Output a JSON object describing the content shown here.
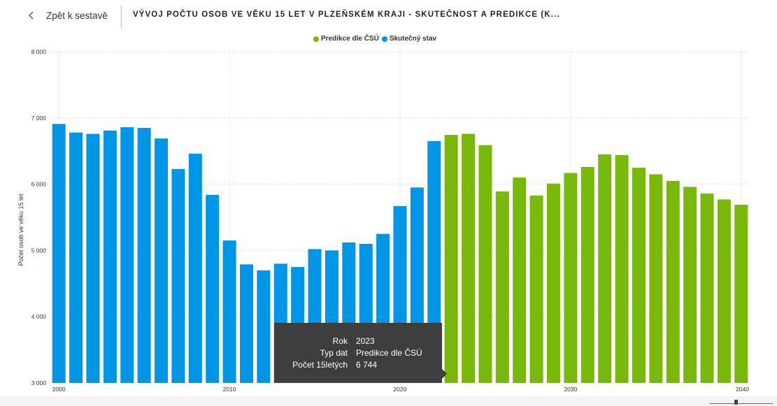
{
  "header": {
    "back_label": "Zpět k sestavě",
    "title": "VÝVOJ POČTU OSOB VE VĚKU 15 LET V PLZEŇSKÉM KRAJI - SKUTEČNOST A PREDIKCE (K..."
  },
  "colors": {
    "actual": "#0096e8",
    "prediction": "#78b80a",
    "grid": "#bfbfbf",
    "tooltip_bg": "#3d3d3d"
  },
  "chart_data": {
    "type": "bar",
    "ylabel": "Počet osob ve věku 15 let",
    "ylim": [
      3000,
      8000
    ],
    "yticks": [
      3000,
      4000,
      5000,
      6000,
      7000,
      8000
    ],
    "ytick_labels": [
      "3 000",
      "4 000",
      "5 000",
      "6 000",
      "7 000",
      "8 000"
    ],
    "xticks": [
      2000,
      2010,
      2020,
      2030,
      2040
    ],
    "grid": true,
    "legend": [
      {
        "name": "Predikce dle ČSÚ",
        "color": "#78b80a"
      },
      {
        "name": "Skutečný stav",
        "color": "#0096e8"
      }
    ],
    "series": [
      {
        "name": "Skutečný stav",
        "color": "#0096e8",
        "x": [
          2000,
          2001,
          2002,
          2003,
          2004,
          2005,
          2006,
          2007,
          2008,
          2009,
          2010,
          2011,
          2012,
          2013,
          2014,
          2015,
          2016,
          2017,
          2018,
          2019,
          2020,
          2021,
          2022
        ],
        "values": [
          6910,
          6780,
          6760,
          6810,
          6860,
          6850,
          6690,
          6230,
          6460,
          5840,
          5150,
          4790,
          4700,
          4800,
          4750,
          5020,
          5000,
          5120,
          5100,
          5250,
          5670,
          5950,
          6650
        ]
      },
      {
        "name": "Predikce dle ČSÚ",
        "color": "#78b80a",
        "x": [
          2023,
          2024,
          2025,
          2026,
          2027,
          2028,
          2029,
          2030,
          2031,
          2032,
          2033,
          2034,
          2035,
          2036,
          2037,
          2038,
          2039,
          2040
        ],
        "values": [
          6744,
          6760,
          6590,
          5890,
          6100,
          5830,
          6010,
          6170,
          6260,
          6450,
          6440,
          6250,
          6150,
          6050,
          5960,
          5860,
          5770,
          5690
        ]
      }
    ]
  },
  "tooltip": {
    "rows": [
      {
        "key": "Rok",
        "value": "2023"
      },
      {
        "key": "Typ dat",
        "value": "Predikce dle ČSÚ"
      },
      {
        "key": "Počet 15letých",
        "value": "6 744"
      }
    ]
  }
}
